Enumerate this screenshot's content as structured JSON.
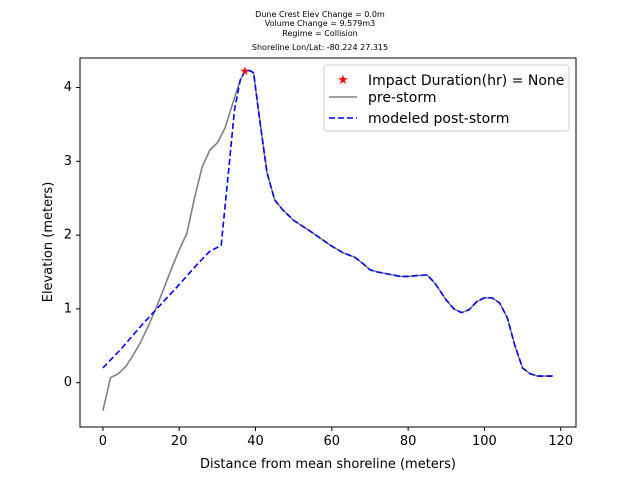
{
  "chart_data": {
    "type": "line",
    "title_lines": [
      "Dune Crest Elev Change = 0.0m",
      "Volume Change = 9.579m3",
      "Regime = Collision",
      "Shoreline Lon/Lat: -80.224 27.315"
    ],
    "xlabel": "Distance from mean shoreline (meters)",
    "ylabel": "Elevation (meters)",
    "xlim": [
      -6,
      124
    ],
    "ylim": [
      -0.6,
      4.4
    ],
    "xticks": [
      0,
      20,
      40,
      60,
      80,
      100,
      120
    ],
    "yticks": [
      0,
      1,
      2,
      3,
      4
    ],
    "legend_position": "top-right",
    "series": [
      {
        "name": "Impact Duration(hr) = None",
        "kind": "marker",
        "color": "#ff0000",
        "points": [
          [
            37.2,
            4.22
          ]
        ]
      },
      {
        "name": "pre-storm",
        "kind": "line",
        "color": "#808080",
        "points": [
          [
            0,
            -0.38
          ],
          [
            2,
            0.07
          ],
          [
            4,
            0.12
          ],
          [
            6,
            0.22
          ],
          [
            8,
            0.38
          ],
          [
            10,
            0.56
          ],
          [
            12,
            0.78
          ],
          [
            14,
            1.02
          ],
          [
            16,
            1.28
          ],
          [
            18,
            1.55
          ],
          [
            20,
            1.8
          ],
          [
            22,
            2.02
          ],
          [
            24,
            2.5
          ],
          [
            26,
            2.92
          ],
          [
            28,
            3.15
          ],
          [
            30,
            3.25
          ],
          [
            32,
            3.45
          ],
          [
            34,
            3.78
          ],
          [
            36,
            4.1
          ],
          [
            37.2,
            4.22
          ],
          [
            38.5,
            4.23
          ],
          [
            39.5,
            4.2
          ],
          [
            41,
            3.6
          ],
          [
            43,
            2.85
          ],
          [
            45,
            2.48
          ],
          [
            47,
            2.35
          ],
          [
            50,
            2.2
          ],
          [
            55,
            2.03
          ],
          [
            60,
            1.85
          ],
          [
            63,
            1.76
          ],
          [
            66,
            1.7
          ],
          [
            68,
            1.62
          ],
          [
            70,
            1.53
          ],
          [
            72,
            1.5
          ],
          [
            75,
            1.47
          ],
          [
            78,
            1.44
          ],
          [
            80,
            1.44
          ],
          [
            82,
            1.45
          ],
          [
            85,
            1.46
          ],
          [
            87,
            1.35
          ],
          [
            90,
            1.12
          ],
          [
            92,
            1.0
          ],
          [
            94,
            0.95
          ],
          [
            96,
            0.99
          ],
          [
            98,
            1.1
          ],
          [
            100,
            1.15
          ],
          [
            102,
            1.15
          ],
          [
            104,
            1.08
          ],
          [
            106,
            0.88
          ],
          [
            108,
            0.5
          ],
          [
            110,
            0.2
          ],
          [
            112,
            0.12
          ],
          [
            114,
            0.09
          ],
          [
            116,
            0.09
          ],
          [
            118,
            0.09
          ]
        ]
      },
      {
        "name": "modeled post-storm",
        "kind": "dashed-line",
        "color": "#0000ff",
        "points": [
          [
            0,
            0.2
          ],
          [
            5,
            0.47
          ],
          [
            10,
            0.77
          ],
          [
            15,
            1.05
          ],
          [
            20,
            1.33
          ],
          [
            25,
            1.62
          ],
          [
            28,
            1.78
          ],
          [
            31,
            1.86
          ],
          [
            33,
            2.9
          ],
          [
            34.5,
            3.7
          ],
          [
            36,
            4.1
          ],
          [
            37.2,
            4.22
          ],
          [
            38.5,
            4.23
          ],
          [
            39.5,
            4.2
          ],
          [
            41,
            3.6
          ],
          [
            43,
            2.85
          ],
          [
            45,
            2.48
          ],
          [
            47,
            2.35
          ],
          [
            50,
            2.2
          ],
          [
            55,
            2.03
          ],
          [
            60,
            1.85
          ],
          [
            63,
            1.76
          ],
          [
            66,
            1.7
          ],
          [
            68,
            1.62
          ],
          [
            70,
            1.53
          ],
          [
            72,
            1.5
          ],
          [
            75,
            1.47
          ],
          [
            78,
            1.44
          ],
          [
            80,
            1.44
          ],
          [
            82,
            1.45
          ],
          [
            85,
            1.46
          ],
          [
            87,
            1.35
          ],
          [
            90,
            1.12
          ],
          [
            92,
            1.0
          ],
          [
            94,
            0.95
          ],
          [
            96,
            0.99
          ],
          [
            98,
            1.1
          ],
          [
            100,
            1.15
          ],
          [
            102,
            1.15
          ],
          [
            104,
            1.08
          ],
          [
            106,
            0.88
          ],
          [
            108,
            0.5
          ],
          [
            110,
            0.2
          ],
          [
            112,
            0.12
          ],
          [
            114,
            0.09
          ],
          [
            116,
            0.09
          ],
          [
            118,
            0.09
          ]
        ]
      }
    ]
  }
}
